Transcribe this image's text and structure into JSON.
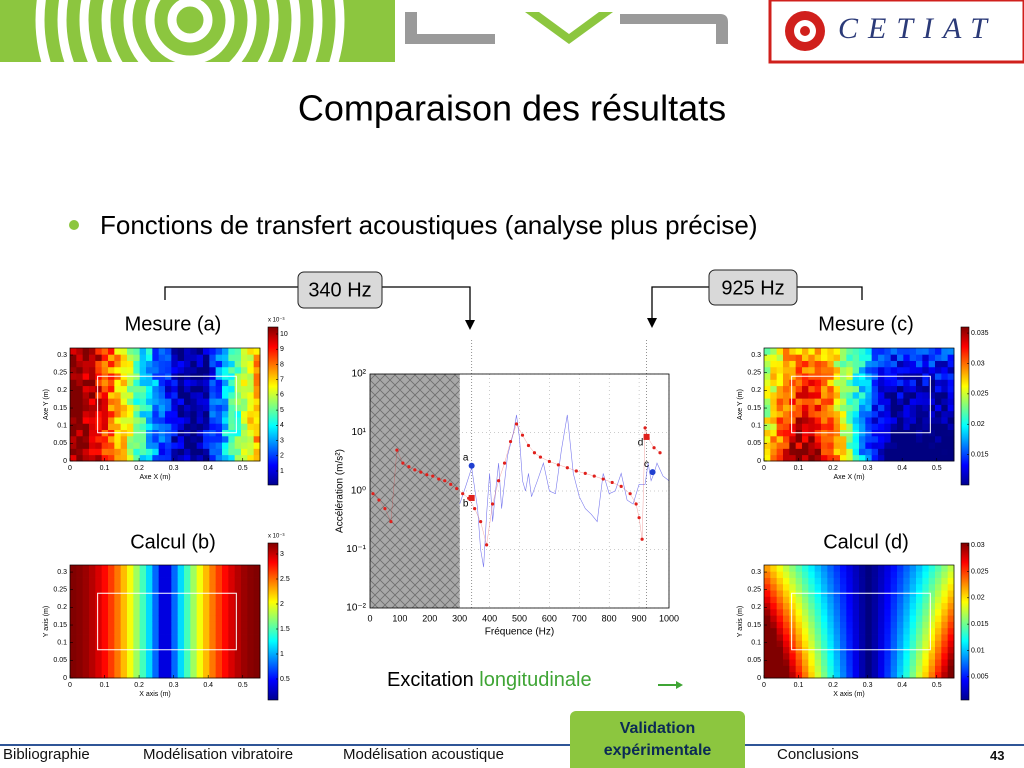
{
  "header": {
    "logo_right": "CETIAT"
  },
  "title": "Comparaison des résultats",
  "bullet": "Fonctions de transfert acoustiques (analyse plus précise)",
  "freq_labels": [
    "340 Hz",
    "925 Hz"
  ],
  "maps": [
    {
      "label": "Mesure (a)",
      "xlabel": "Axe X (m)",
      "ylabel": "Axe Y (m)",
      "xlim": [
        0,
        0.55
      ],
      "ylim": [
        0,
        0.32
      ],
      "xticks": [
        0,
        0.1,
        0.2,
        0.3,
        0.4,
        0.5
      ],
      "yticks": [
        0,
        0.05,
        0.1,
        0.15,
        0.2,
        0.25,
        0.3
      ],
      "colorbar": {
        "exponent": "x 10⁻³",
        "lim": [
          0.08,
          10.46
        ],
        "ticks": [
          1,
          2,
          3,
          4,
          5,
          6,
          7,
          8,
          9,
          10
        ]
      }
    },
    {
      "label": "Calcul (b)",
      "xlabel": "X axis (m)",
      "ylabel": "Y axis (m)",
      "xlim": [
        0,
        0.55
      ],
      "ylim": [
        0,
        0.32
      ],
      "xticks": [
        0,
        0.1,
        0.2,
        0.3,
        0.4,
        0.5
      ],
      "yticks": [
        0,
        0.05,
        0.1,
        0.15,
        0.2,
        0.25,
        0.3
      ],
      "colorbar": {
        "exponent": "x 10⁻³",
        "lim": [
          0.08,
          3.22
        ],
        "ticks": [
          0.5,
          1,
          1.5,
          2,
          2.5,
          3
        ]
      }
    },
    {
      "label": "Mesure (c)",
      "xlabel": "Axe X (m)",
      "ylabel": "Axe Y (m)",
      "xlim": [
        0,
        0.55
      ],
      "ylim": [
        0,
        0.32
      ],
      "xticks": [
        0,
        0.1,
        0.2,
        0.3,
        0.4,
        0.5
      ],
      "yticks": [
        0,
        0.05,
        0.1,
        0.15,
        0.2,
        0.25,
        0.3
      ],
      "colorbar": {
        "lim": [
          0.01,
          0.036
        ],
        "ticks": [
          0.015,
          0.02,
          0.025,
          0.03,
          0.035
        ]
      }
    },
    {
      "label": "Calcul (d)",
      "xlabel": "X axis (m)",
      "ylabel": "Y axis (m)",
      "xlim": [
        0,
        0.55
      ],
      "ylim": [
        0,
        0.32
      ],
      "xticks": [
        0,
        0.1,
        0.2,
        0.3,
        0.4,
        0.5
      ],
      "yticks": [
        0,
        0.05,
        0.1,
        0.15,
        0.2,
        0.25,
        0.3
      ],
      "colorbar": {
        "lim": [
          0.0006,
          0.0304
        ],
        "ticks": [
          0.005,
          0.01,
          0.015,
          0.02,
          0.025,
          0.03
        ]
      }
    }
  ],
  "chart_data": {
    "type": "line",
    "xlabel": "Fréquence (Hz)",
    "ylabel": "Accélération (m/s²)",
    "xlim": [
      0,
      1000
    ],
    "ylim": [
      0.01,
      100
    ],
    "log_y": true,
    "grid": true,
    "xticks": [
      0,
      100,
      200,
      300,
      400,
      500,
      600,
      700,
      800,
      900,
      1000
    ],
    "yticks": [
      {
        "value": 0.01,
        "label": "10⁻²"
      },
      {
        "value": 0.1,
        "label": "10⁻¹"
      },
      {
        "value": 1,
        "label": "10⁰"
      },
      {
        "value": 10,
        "label": "10¹"
      },
      {
        "value": 100,
        "label": "10²"
      }
    ],
    "shaded_xlim": [
      0,
      300
    ],
    "vlines": [
      340,
      925
    ],
    "series": [
      {
        "color": "#7a7aee",
        "style": "line",
        "x": [
          300,
          320,
          340,
          360,
          370,
          380,
          390,
          400,
          410,
          420,
          430,
          440,
          460,
          480,
          490,
          500,
          510,
          520,
          530,
          540,
          560,
          580,
          600,
          620,
          640,
          660,
          680,
          700,
          720,
          740,
          760,
          780,
          800,
          820,
          840,
          860,
          880,
          900,
          920,
          930,
          940,
          950,
          960,
          980,
          1000
        ],
        "values": [
          0.6,
          1.2,
          2.5,
          0.5,
          0.1,
          0.05,
          0.4,
          2,
          0.3,
          1,
          3,
          0.5,
          4,
          10,
          20,
          8,
          1.5,
          1,
          2,
          0.8,
          1.5,
          3,
          1,
          0.9,
          5,
          20,
          2,
          0.8,
          0.5,
          0.4,
          0.3,
          2,
          0.9,
          1,
          2,
          0.7,
          0.6,
          1.3,
          1.3,
          3,
          1.5,
          2,
          3,
          1.8,
          1.5
        ]
      },
      {
        "color": "#e0201c",
        "style": "dots",
        "x": [
          10,
          30,
          50,
          70,
          90,
          110,
          130,
          150,
          170,
          190,
          210,
          230,
          250,
          270,
          290,
          310,
          330,
          350,
          370,
          390,
          410,
          430,
          450,
          470,
          490,
          510,
          530,
          550,
          570,
          600,
          630,
          660,
          690,
          720,
          750,
          780,
          810,
          840,
          870,
          890,
          900,
          910,
          920,
          930,
          950,
          970
        ],
        "values": [
          0.9,
          0.7,
          0.5,
          0.3,
          5,
          3,
          2.6,
          2.3,
          2.1,
          1.9,
          1.8,
          1.6,
          1.5,
          1.3,
          1.1,
          0.9,
          0.75,
          0.5,
          0.3,
          0.12,
          0.6,
          1.5,
          3,
          7,
          14,
          9,
          6,
          4.5,
          3.8,
          3.2,
          2.8,
          2.5,
          2.2,
          2,
          1.8,
          1.6,
          1.4,
          1.2,
          0.9,
          0.6,
          0.35,
          0.15,
          12,
          8,
          5.5,
          4.5
        ]
      }
    ],
    "markers": [
      {
        "label": "a",
        "x": 340,
        "y": 2.7,
        "color": "#1f3fd0",
        "shape": "circle"
      },
      {
        "label": "b",
        "x": 340,
        "y": 0.76,
        "color": "#e0201c",
        "shape": "square"
      },
      {
        "label": "c",
        "x": 945,
        "y": 2.1,
        "color": "#1f3fd0",
        "shape": "circle"
      },
      {
        "label": "d",
        "x": 925,
        "y": 8.4,
        "color": "#e0201c",
        "shape": "square"
      }
    ]
  },
  "excitation": {
    "text": "Excitation",
    "highlight": "longitudinale"
  },
  "nav": {
    "tabs": [
      "Bibliographie",
      "Modélisation vibratoire",
      "Modélisation acoustique",
      "Validation expérimentale",
      "Conclusions"
    ],
    "active": 3,
    "page": "43"
  }
}
